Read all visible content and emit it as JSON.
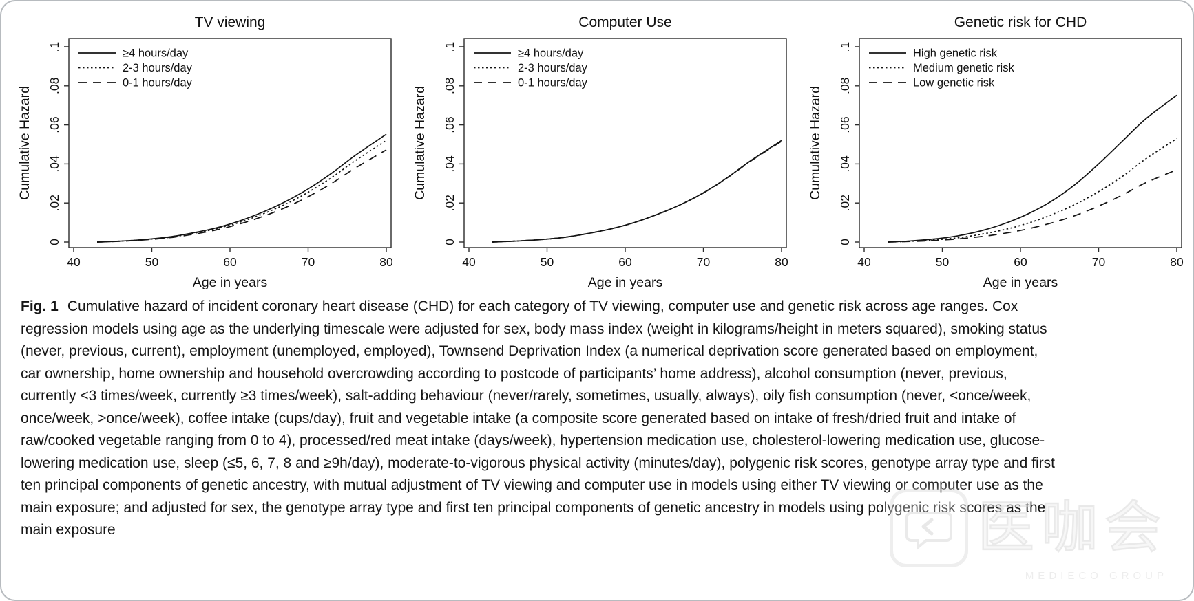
{
  "figure": {
    "caption_label": "Fig. 1",
    "caption_text": "Cumulative hazard of incident coronary heart disease (CHD) for each category of TV viewing, computer use and genetic risk across age ranges. Cox regression models using age as the underlying timescale were adjusted for sex, body mass index (weight in kilograms/height in meters squared), smoking status (never, previous, current), employment (unemployed, employed), Townsend Deprivation Index (a numerical deprivation score generated based on employment, car ownership, home ownership and household overcrowding according to postcode of participants’ home address), alcohol consumption (never, previous, currently <3 times/week, currently ≥3 times/week), salt-adding behaviour (never/rarely, sometimes, usually, always), oily fish consumption (never, <once/week, once/week, >once/week), coffee intake (cups/day), fruit and vegetable intake (a composite score generated based on intake of fresh/dried fruit and intake of raw/cooked vegetable ranging from 0 to 4), processed/red meat intake (days/week), hypertension medication use, cholesterol-lowering medication use, glucose-lowering medication use, sleep (≤5, 6, 7, 8 and ≥9h/day), moderate-to-vigorous physical activity (minutes/day), polygenic risk scores, genotype array type and first ten principal components of genetic ancestry, with mutual adjustment of TV viewing and computer use in models using either TV viewing or computer use as the main exposure; and adjusted for sex, the genotype array type and first ten principal components of genetic ancestry in models using polygenic risk scores as the main exposure"
  },
  "watermark": {
    "icon": "chat-bubble-logo-icon",
    "cjk": "医咖会",
    "subtext": "MEDIECO GROUP"
  },
  "colors": {
    "line": "#141414",
    "box": "#2b2b2b",
    "page_border": "#b7bbbf"
  },
  "chart_data": [
    {
      "type": "line",
      "title": "TV viewing",
      "xlabel": "Age in years",
      "ylabel": "Cumulative Hazard",
      "xlim": [
        40,
        80
      ],
      "ylim": [
        0,
        0.1
      ],
      "xticks": [
        40,
        50,
        60,
        70,
        80
      ],
      "yticks": [
        0,
        0.02,
        0.04,
        0.06,
        0.08,
        0.1
      ],
      "ytick_labels": [
        "0",
        ".02",
        ".04",
        ".06",
        ".08",
        ".1"
      ],
      "grid": false,
      "legend_position": "top-left",
      "x": [
        43,
        46,
        49,
        52,
        55,
        58,
        61,
        64,
        67,
        70,
        73,
        76,
        80
      ],
      "series": [
        {
          "name": "≥4 hours/day",
          "dash": "solid",
          "values": [
            0,
            0.0005,
            0.0013,
            0.0025,
            0.0045,
            0.007,
            0.0105,
            0.015,
            0.0205,
            0.0272,
            0.0352,
            0.0443,
            0.0552
          ]
        },
        {
          "name": "2-3 hours/day",
          "dash": "dotted",
          "values": [
            0,
            0.0005,
            0.0012,
            0.0023,
            0.0042,
            0.0066,
            0.0098,
            0.0141,
            0.0192,
            0.0255,
            0.033,
            0.0416,
            0.052
          ]
        },
        {
          "name": "0-1 hours/day",
          "dash": "dashed",
          "values": [
            0,
            0.0004,
            0.0011,
            0.0021,
            0.0038,
            0.006,
            0.009,
            0.0128,
            0.0175,
            0.0232,
            0.03,
            0.0378,
            0.0472
          ]
        }
      ]
    },
    {
      "type": "line",
      "title": "Computer Use",
      "xlabel": "Age in years",
      "ylabel": "Cumulative Hazard",
      "xlim": [
        40,
        80
      ],
      "ylim": [
        0,
        0.1
      ],
      "xticks": [
        40,
        50,
        60,
        70,
        80
      ],
      "yticks": [
        0,
        0.02,
        0.04,
        0.06,
        0.08,
        0.1
      ],
      "ytick_labels": [
        "0",
        ".02",
        ".04",
        ".06",
        ".08",
        ".1"
      ],
      "grid": false,
      "legend_position": "top-left",
      "x": [
        43,
        46,
        49,
        52,
        55,
        58,
        61,
        64,
        67,
        70,
        73,
        76,
        80
      ],
      "series": [
        {
          "name": "≥4 hours/day",
          "dash": "solid",
          "values": [
            0,
            0.0005,
            0.0012,
            0.0023,
            0.0042,
            0.0066,
            0.0098,
            0.014,
            0.019,
            0.0252,
            0.0328,
            0.0415,
            0.052
          ]
        },
        {
          "name": "2-3 hours/day",
          "dash": "dotted",
          "values": [
            0,
            0.0005,
            0.0012,
            0.0023,
            0.0042,
            0.0066,
            0.0098,
            0.014,
            0.019,
            0.0252,
            0.0328,
            0.0415,
            0.0518
          ]
        },
        {
          "name": "0-1 hours/day",
          "dash": "dashed",
          "values": [
            0,
            0.0005,
            0.0012,
            0.0023,
            0.0042,
            0.0066,
            0.0098,
            0.014,
            0.019,
            0.0251,
            0.0327,
            0.0413,
            0.0516
          ]
        }
      ]
    },
    {
      "type": "line",
      "title": "Genetic risk for CHD",
      "xlabel": "Age in years",
      "ylabel": "Cumulative Hazard",
      "xlim": [
        40,
        80
      ],
      "ylim": [
        0,
        0.1
      ],
      "xticks": [
        40,
        50,
        60,
        70,
        80
      ],
      "yticks": [
        0,
        0.02,
        0.04,
        0.06,
        0.08,
        0.1
      ],
      "ytick_labels": [
        "0",
        ".02",
        ".04",
        ".06",
        ".08",
        ".1"
      ],
      "grid": false,
      "legend_position": "top-left",
      "x": [
        43,
        46,
        49,
        52,
        55,
        58,
        61,
        64,
        67,
        70,
        73,
        76,
        80
      ],
      "series": [
        {
          "name": "High genetic risk",
          "dash": "solid",
          "values": [
            0,
            0.0006,
            0.0016,
            0.0032,
            0.0058,
            0.0095,
            0.0145,
            0.021,
            0.0295,
            0.04,
            0.0515,
            0.063,
            0.0752
          ]
        },
        {
          "name": "Medium genetic risk",
          "dash": "dotted",
          "values": [
            0,
            0.0004,
            0.0011,
            0.0022,
            0.004,
            0.0064,
            0.0097,
            0.014,
            0.0193,
            0.0258,
            0.0335,
            0.0425,
            0.053
          ]
        },
        {
          "name": "Low genetic risk",
          "dash": "dashed",
          "values": [
            0,
            0.0003,
            0.0008,
            0.0016,
            0.0028,
            0.0045,
            0.0068,
            0.0098,
            0.0136,
            0.0184,
            0.024,
            0.0303,
            0.037
          ]
        }
      ]
    }
  ]
}
